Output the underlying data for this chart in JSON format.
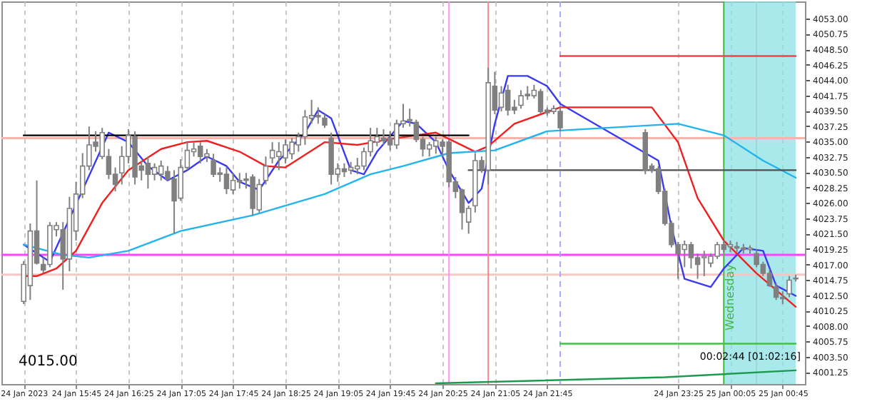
{
  "chart_data": {
    "type": "candlestick",
    "xlim": [
      "2023-01-24T14:48",
      "2023-01-25T01:02"
    ],
    "ylim": [
      3999.5,
      4055.5
    ],
    "xticks": [
      {
        "value": "2023-01-24T15:05",
        "label": "24 Jan 2023"
      },
      {
        "value": "2023-01-24T15:45",
        "label": "24 Jan 15:45"
      },
      {
        "value": "2023-01-24T16:25",
        "label": "24 Jan 16:25"
      },
      {
        "value": "2023-01-24T17:05",
        "label": "24 Jan 17:05"
      },
      {
        "value": "2023-01-24T17:45",
        "label": "24 Jan 17:45"
      },
      {
        "value": "2023-01-24T18:25",
        "label": "24 Jan 18:25"
      },
      {
        "value": "2023-01-24T19:05",
        "label": "24 Jan 19:05"
      },
      {
        "value": "2023-01-24T19:45",
        "label": "24 Jan 19:45"
      },
      {
        "value": "2023-01-24T20:25",
        "label": "24 Jan 20:25"
      },
      {
        "value": "2023-01-24T21:05",
        "label": "24 Jan 21:05"
      },
      {
        "value": "2023-01-24T21:45",
        "label": "24 Jan 21:45"
      },
      {
        "value": "2023-01-24T23:25",
        "label": "24 Jan 23:25"
      },
      {
        "value": "2023-01-25T00:05",
        "label": "25 Jan 00:05"
      },
      {
        "value": "2023-01-25T00:45",
        "label": "25 Jan 00:45"
      }
    ],
    "yticks": [
      {
        "value": 4053,
        "label": "4053.00"
      },
      {
        "value": 4050.75,
        "label": "4050.75"
      },
      {
        "value": 4048.5,
        "label": "4048.50"
      },
      {
        "value": 4046.25,
        "label": "4046.25"
      },
      {
        "value": 4044,
        "label": "4044.00"
      },
      {
        "value": 4041.75,
        "label": "4041.75"
      },
      {
        "value": 4039.5,
        "label": "4039.50"
      },
      {
        "value": 4037.25,
        "label": "4037.25"
      },
      {
        "value": 4035,
        "label": "4035.00"
      },
      {
        "value": 4032.75,
        "label": "4032.75"
      },
      {
        "value": 4030.5,
        "label": "4030.50"
      },
      {
        "value": 4028.25,
        "label": "4028.25"
      },
      {
        "value": 4026,
        "label": "4026.00"
      },
      {
        "value": 4023.75,
        "label": "4023.75"
      },
      {
        "value": 4021.5,
        "label": "4021.50"
      },
      {
        "value": 4019.25,
        "label": "4019.25"
      },
      {
        "value": 4017,
        "label": "4017.00"
      },
      {
        "value": 4014.75,
        "label": "4014.75"
      },
      {
        "value": 4012.5,
        "label": "4012.50"
      },
      {
        "value": 4010.25,
        "label": "4010.25"
      },
      {
        "value": 4008,
        "label": "4008.00"
      },
      {
        "value": 4005.75,
        "label": "4005.75"
      },
      {
        "value": 4003.5,
        "label": "4003.50"
      },
      {
        "value": 4001.25,
        "label": "4001.25"
      }
    ],
    "grid": "x",
    "series": [
      {
        "type": "line",
        "color": "#3a3af0",
        "x": [
          "2023-01-24T15:05",
          "2023-01-24T15:25",
          "2023-01-24T16:10",
          "2023-01-24T16:25",
          "2023-01-24T16:40",
          "2023-01-24T16:55",
          "2023-01-24T17:10",
          "2023-01-24T17:25",
          "2023-01-24T17:40",
          "2023-01-24T17:50",
          "2023-01-24T18:05",
          "2023-01-24T18:20",
          "2023-01-24T18:40",
          "2023-01-24T18:50",
          "2023-01-24T19:00",
          "2023-01-24T19:15",
          "2023-01-24T19:25",
          "2023-01-24T19:35",
          "2023-01-24T19:55",
          "2023-01-24T20:05",
          "2023-01-24T20:20",
          "2023-01-24T20:30",
          "2023-01-24T20:45",
          "2023-01-24T20:55",
          "2023-01-24T21:05",
          "2023-01-24T21:15",
          "2023-01-24T21:30",
          "2023-01-24T21:45",
          "2023-01-24T21:55",
          "2023-01-24T23:10",
          "2023-01-24T23:20",
          "2023-01-24T23:30",
          "2023-01-24T23:50",
          "2023-01-25T00:00",
          "2023-01-25T00:15",
          "2023-01-25T00:30",
          "2023-01-25T00:40",
          "2023-01-25T00:55"
        ],
        "values": [
          4019.9,
          4017.4,
          4036.3,
          4034.9,
          4031.4,
          4029.3,
          4030.8,
          4032.8,
          4031.4,
          4029.1,
          4027.9,
          4032.2,
          4036.3,
          4039.6,
          4038.4,
          4030.8,
          4030.2,
          4033.5,
          4038,
          4037.6,
          4034.9,
          4030.8,
          4026,
          4028.1,
          4037.6,
          4044.6,
          4044.6,
          4043.1,
          4040.5,
          4032.2,
          4022.5,
          4014.9,
          4013.7,
          4016.4,
          4019.4,
          4019,
          4013.9,
          4012.4
        ]
      },
      {
        "type": "line",
        "color": "#f02020",
        "x": [
          "2023-01-24T15:05",
          "2023-01-24T15:15",
          "2023-01-24T15:30",
          "2023-01-24T15:45",
          "2023-01-24T16:05",
          "2023-01-24T16:25",
          "2023-01-24T16:50",
          "2023-01-24T17:10",
          "2023-01-24T17:25",
          "2023-01-24T17:50",
          "2023-01-24T18:10",
          "2023-01-24T18:25",
          "2023-01-24T18:55",
          "2023-01-24T19:20",
          "2023-01-24T19:50",
          "2023-01-24T20:20",
          "2023-01-24T20:35",
          "2023-01-24T20:50",
          "2023-01-24T21:00",
          "2023-01-24T21:20",
          "2023-01-24T21:55",
          "2023-01-24T23:05",
          "2023-01-24T23:25",
          "2023-01-24T23:40",
          "2023-01-25T00:00",
          "2023-01-25T00:25",
          "2023-01-25T00:55"
        ],
        "values": [
          4015.3,
          4015.3,
          4016.4,
          4019,
          4026,
          4030.8,
          4033.9,
          4034.9,
          4035.1,
          4033.5,
          4031.4,
          4031.2,
          4034.9,
          4034.5,
          4035.5,
          4036.3,
          4034.9,
          4033.5,
          4034.3,
          4037.6,
          4040,
          4040,
          4034.9,
          4026.7,
          4020.5,
          4015.7,
          4010.8
        ]
      },
      {
        "type": "line",
        "color": "#22b4ee",
        "x": [
          "2023-01-24T15:05",
          "2023-01-24T15:35",
          "2023-01-24T15:55",
          "2023-01-24T16:25",
          "2023-01-24T17:05",
          "2023-01-24T18:00",
          "2023-01-24T18:55",
          "2023-01-24T19:30",
          "2023-01-24T19:55",
          "2023-01-24T20:30",
          "2023-01-24T21:05",
          "2023-01-24T21:45",
          "2023-01-24T23:25",
          "2023-01-25T00:00",
          "2023-01-25T00:30",
          "2023-01-25T00:55"
        ],
        "values": [
          4019.9,
          4018.4,
          4018,
          4019,
          4021.9,
          4024.2,
          4027.3,
          4030.2,
          4031.4,
          4033.3,
          4033.7,
          4036.5,
          4037.6,
          4035.9,
          4032.2,
          4029.7
        ]
      },
      {
        "type": "line",
        "color": "#1e9a50",
        "x": [
          "2023-01-24T20:20",
          "2023-01-24T23:15",
          "2023-01-25T00:55"
        ],
        "values": [
          3999.6,
          4000.5,
          4001.5
        ]
      },
      {
        "type": "line",
        "color": "#000000",
        "x": [
          "2023-01-24T15:05",
          "2023-01-24T20:45"
        ],
        "values": [
          4035.9,
          4035.9
        ]
      },
      {
        "type": "line",
        "color": "#505050",
        "x": [
          "2023-01-24T20:45",
          "2023-01-25T00:55"
        ],
        "values": [
          4030.8,
          4030.8
        ]
      },
      {
        "type": "line",
        "color": "#e84848",
        "x": [
          "2023-01-24T21:55",
          "2023-01-25T00:55"
        ],
        "values": [
          4047.5,
          4047.5
        ]
      },
      {
        "type": "line",
        "color": "#48c048",
        "x": [
          "2023-01-24T21:55",
          "2023-01-25T00:55"
        ],
        "values": [
          4005.4,
          4005.4
        ]
      },
      {
        "color": "#808080",
        "x": [
          "2023-01-24T15:05",
          "2023-01-24T15:10",
          "2023-01-24T15:15",
          "2023-01-24T15:20",
          "2023-01-24T15:25",
          "2023-01-24T15:30",
          "2023-01-24T15:35",
          "2023-01-24T15:40",
          "2023-01-24T15:45",
          "2023-01-24T15:50",
          "2023-01-24T15:55",
          "2023-01-24T16:00",
          "2023-01-24T16:05",
          "2023-01-24T16:10",
          "2023-01-24T16:15",
          "2023-01-24T16:20",
          "2023-01-24T16:25",
          "2023-01-24T16:30",
          "2023-01-24T16:35",
          "2023-01-24T16:40",
          "2023-01-24T16:45",
          "2023-01-24T16:50",
          "2023-01-24T16:55",
          "2023-01-24T17:00",
          "2023-01-24T17:05",
          "2023-01-24T17:10",
          "2023-01-24T17:15",
          "2023-01-24T17:20",
          "2023-01-24T17:25",
          "2023-01-24T17:30",
          "2023-01-24T17:35",
          "2023-01-24T17:40",
          "2023-01-24T17:45",
          "2023-01-24T17:50",
          "2023-01-24T17:55",
          "2023-01-24T18:00",
          "2023-01-24T18:05",
          "2023-01-24T18:10",
          "2023-01-24T18:15",
          "2023-01-24T18:20",
          "2023-01-24T18:25",
          "2023-01-24T18:30",
          "2023-01-24T18:35",
          "2023-01-24T18:40",
          "2023-01-24T18:45",
          "2023-01-24T18:50",
          "2023-01-24T18:55",
          "2023-01-24T19:00",
          "2023-01-24T19:05",
          "2023-01-24T19:10",
          "2023-01-24T19:15",
          "2023-01-24T19:20",
          "2023-01-24T19:25",
          "2023-01-24T19:30",
          "2023-01-24T19:35",
          "2023-01-24T19:40",
          "2023-01-24T19:45",
          "2023-01-24T19:50",
          "2023-01-24T19:55",
          "2023-01-24T20:00",
          "2023-01-24T20:05",
          "2023-01-24T20:10",
          "2023-01-24T20:15",
          "2023-01-24T20:20",
          "2023-01-24T20:25",
          "2023-01-24T20:30",
          "2023-01-24T20:35",
          "2023-01-24T20:40",
          "2023-01-24T20:45",
          "2023-01-24T20:50",
          "2023-01-24T20:55",
          "2023-01-24T21:00",
          "2023-01-24T21:05",
          "2023-01-24T21:10",
          "2023-01-24T21:15",
          "2023-01-24T21:20",
          "2023-01-24T21:25",
          "2023-01-24T21:30",
          "2023-01-24T21:35",
          "2023-01-24T21:40",
          "2023-01-24T21:45",
          "2023-01-24T21:50",
          "2023-01-24T21:55",
          "2023-01-24T23:00",
          "2023-01-24T23:05",
          "2023-01-24T23:10",
          "2023-01-24T23:15",
          "2023-01-24T23:20",
          "2023-01-24T23:25",
          "2023-01-24T23:30",
          "2023-01-24T23:35",
          "2023-01-24T23:40",
          "2023-01-24T23:45",
          "2023-01-24T23:50",
          "2023-01-24T23:55",
          "2023-01-25T00:00",
          "2023-01-25T00:05",
          "2023-01-25T00:10",
          "2023-01-25T00:15",
          "2023-01-25T00:20",
          "2023-01-25T00:25",
          "2023-01-25T00:30",
          "2023-01-25T00:35",
          "2023-01-25T00:40",
          "2023-01-25T00:45",
          "2023-01-25T00:50",
          "2023-01-25T00:55"
        ],
        "ohlc": [
          [
            4011.6,
            4017.5,
            4011.2,
            4017.0
          ],
          [
            4013.9,
            4023.0,
            4011.8,
            4021.9
          ],
          [
            4021.9,
            4029.3,
            4017.0,
            4017.2
          ],
          [
            4017.0,
            4018.0,
            4015.8,
            4016.2
          ],
          [
            4017.0,
            4023.2,
            4016.6,
            4022.7
          ],
          [
            4022.1,
            4023.2,
            4021.1,
            4022.7
          ],
          [
            4022.1,
            4023.2,
            4013.3,
            4017.8
          ],
          [
            4017.8,
            4026.9,
            4016.0,
            4025.2
          ],
          [
            4021.9,
            4029.1,
            4020.5,
            4027.3
          ],
          [
            4027.3,
            4033.3,
            4026.7,
            4031.4
          ],
          [
            4031.4,
            4037.2,
            4030.8,
            4034.5
          ],
          [
            4034.9,
            4036.5,
            4033.5,
            4034.3
          ],
          [
            4032.8,
            4037.0,
            4032.4,
            4036.3
          ],
          [
            4032.8,
            4033.9,
            4029.5,
            4030.2
          ],
          [
            4030.2,
            4031.2,
            4027.7,
            4028.7
          ],
          [
            4030.4,
            4034.3,
            4028.7,
            4032.8
          ],
          [
            4032.8,
            4036.8,
            4031.8,
            4035.9
          ],
          [
            4035.7,
            4036.5,
            4028.7,
            4029.8
          ],
          [
            4031.4,
            4032.2,
            4029.3,
            4030.8
          ],
          [
            4031.8,
            4032.8,
            4028.1,
            4030.2
          ],
          [
            4030.2,
            4031.8,
            4029.3,
            4031.2
          ],
          [
            4030.2,
            4032.2,
            4029.3,
            4031.4
          ],
          [
            4030.6,
            4031.4,
            4029.3,
            4029.5
          ],
          [
            4029.5,
            4030.8,
            4021.5,
            4026.3
          ],
          [
            4026.7,
            4032.4,
            4026.3,
            4031.2
          ],
          [
            4031.2,
            4034.9,
            4030.8,
            4033.7
          ],
          [
            4033.5,
            4034.9,
            4032.8,
            4033.9
          ],
          [
            4034.3,
            4034.9,
            4031.8,
            4032.8
          ],
          [
            4032.8,
            4033.9,
            4032.0,
            4033.2
          ],
          [
            4032.2,
            4033.2,
            4029.8,
            4030.2
          ],
          [
            4030.4,
            4031.2,
            4029.1,
            4030.2
          ],
          [
            4030.2,
            4031.2,
            4027.3,
            4028.1
          ],
          [
            4027.9,
            4030.4,
            4027.3,
            4029.3
          ],
          [
            4029.3,
            4030.4,
            4028.1,
            4029.1
          ],
          [
            4029.5,
            4030.4,
            4028.1,
            4029.3
          ],
          [
            4029.8,
            4030.2,
            4024.2,
            4025.2
          ],
          [
            4025.0,
            4029.5,
            4024.6,
            4028.7
          ],
          [
            4029.3,
            4032.8,
            4028.7,
            4031.4
          ],
          [
            4032.6,
            4034.9,
            4031.8,
            4033.7
          ],
          [
            4032.8,
            4034.9,
            4030.8,
            4033.5
          ],
          [
            4032.6,
            4035.3,
            4031.8,
            4034.5
          ],
          [
            4033.2,
            4035.5,
            4032.4,
            4034.9
          ],
          [
            4034.5,
            4036.3,
            4033.5,
            4035.7
          ],
          [
            4035.7,
            4039.6,
            4034.5,
            4038.6
          ],
          [
            4038.4,
            4041.1,
            4037.6,
            4038.8
          ],
          [
            4038.8,
            4040.0,
            4037.6,
            4038.6
          ],
          [
            4038.4,
            4039.0,
            4037.0,
            4037.4
          ],
          [
            4035.5,
            4036.3,
            4028.7,
            4030.2
          ],
          [
            4030.2,
            4031.8,
            4029.1,
            4031.0
          ],
          [
            4031.0,
            4031.8,
            4029.8,
            4030.6
          ],
          [
            4030.8,
            4032.0,
            4030.2,
            4031.2
          ],
          [
            4031.0,
            4032.6,
            4030.2,
            4031.4
          ],
          [
            4031.4,
            4034.1,
            4030.8,
            4033.5
          ],
          [
            4033.5,
            4037.0,
            4032.8,
            4035.1
          ],
          [
            4034.9,
            4037.0,
            4034.3,
            4035.7
          ],
          [
            4035.5,
            4036.8,
            4034.5,
            4035.1
          ],
          [
            4035.5,
            4036.5,
            4033.7,
            4034.5
          ],
          [
            4034.5,
            4038.2,
            4033.9,
            4037.6
          ],
          [
            4037.6,
            4040.5,
            4037.0,
            4038.0
          ],
          [
            4038.0,
            4039.8,
            4037.2,
            4038.2
          ],
          [
            4037.8,
            4038.2,
            4034.9,
            4035.3
          ],
          [
            4035.3,
            4035.7,
            4032.8,
            4033.9
          ],
          [
            4033.9,
            4034.9,
            4032.8,
            4034.5
          ],
          [
            4034.3,
            4035.7,
            4033.2,
            4035.1
          ],
          [
            4034.9,
            4035.3,
            4032.8,
            4034.3
          ],
          [
            4034.9,
            4035.3,
            4028.3,
            4029.1
          ],
          [
            4029.1,
            4029.8,
            4026.7,
            4027.7
          ],
          [
            4027.9,
            4028.1,
            4022.1,
            4024.6
          ],
          [
            4023.2,
            4025.6,
            4021.5,
            4025.2
          ],
          [
            4025.6,
            4033.3,
            4024.6,
            4032.2
          ],
          [
            4032.2,
            4032.8,
            4030.4,
            4031.0
          ],
          [
            4030.8,
            4045.8,
            4028.7,
            4043.6
          ],
          [
            4043.1,
            4045.2,
            4039.0,
            4039.6
          ],
          [
            4040.0,
            4043.1,
            4039.4,
            4042.1
          ],
          [
            4042.5,
            4043.3,
            4038.8,
            4039.6
          ],
          [
            4040.0,
            4041.1,
            4039.0,
            4039.6
          ],
          [
            4040.3,
            4042.5,
            4039.8,
            4041.7
          ],
          [
            4041.9,
            4043.1,
            4041.1,
            4041.7
          ],
          [
            4041.7,
            4043.3,
            4041.3,
            4042.5
          ],
          [
            4042.3,
            4042.7,
            4039.0,
            4039.4
          ],
          [
            4039.6,
            4040.0,
            4038.8,
            4039.2
          ],
          [
            4039.4,
            4040.3,
            4039.0,
            4039.8
          ],
          [
            4039.4,
            4040.0,
            4036.5,
            4037.0
          ],
          [
            4036.3,
            4036.8,
            4030.2,
            4030.8
          ],
          [
            4031.4,
            4031.8,
            4030.4,
            4030.8
          ],
          [
            4031.0,
            4031.4,
            4027.3,
            4027.7
          ],
          [
            4027.7,
            4028.1,
            4022.7,
            4023.0
          ],
          [
            4023.0,
            4023.4,
            4019.5,
            4019.9
          ],
          [
            4019.9,
            4020.3,
            4014.9,
            4018.6
          ],
          [
            4019.2,
            4020.5,
            4016.6,
            4019.9
          ],
          [
            4019.9,
            4020.3,
            4016.4,
            4018.0
          ],
          [
            4018.0,
            4018.6,
            4014.9,
            4017.0
          ],
          [
            4018.0,
            4019.0,
            4015.3,
            4018.2
          ],
          [
            4017.2,
            4018.6,
            4016.6,
            4018.2
          ],
          [
            4018.2,
            4020.3,
            4017.8,
            4019.9
          ],
          [
            4019.9,
            4020.5,
            4018.8,
            4019.2
          ],
          [
            4019.6,
            4020.5,
            4018.8,
            4019.9
          ],
          [
            4019.6,
            4020.3,
            4018.8,
            4019.4
          ],
          [
            4019.4,
            4020.0,
            4018.6,
            4019.2
          ],
          [
            4019.2,
            4019.8,
            4018.6,
            4019.4
          ],
          [
            4018.6,
            4019.2,
            4016.6,
            4017.0
          ],
          [
            4017.0,
            4017.4,
            4015.3,
            4015.7
          ],
          [
            4015.7,
            4016.2,
            4013.7,
            4013.9
          ],
          [
            4013.7,
            4014.3,
            4011.8,
            4012.2
          ],
          [
            4012.2,
            4013.1,
            4011.2,
            4012.0
          ],
          [
            4012.7,
            4015.3,
            4012.2,
            4014.7
          ],
          [
            4014.9,
            4015.5,
            4014.5,
            4015.0
          ]
        ]
      }
    ],
    "ref_lines": [
      {
        "axis": "y",
        "value": 4035.5,
        "color": "#f6b4aa"
      },
      {
        "axis": "y",
        "value": 4018.4,
        "color": "#ff44ff"
      },
      {
        "axis": "y",
        "value": 4015.5,
        "color": "#f8c4c4"
      },
      {
        "axis": "x",
        "value": "2023-01-24T20:30",
        "color": "#ff90ff"
      },
      {
        "axis": "x",
        "value": "2023-01-24T21:00",
        "color": "#f08a8a"
      },
      {
        "axis": "x",
        "value": "2023-01-24T21:55",
        "color": "#a8a8ff",
        "line_style": "dashed"
      },
      {
        "axis": "x",
        "value": "2023-01-25T00:00",
        "color": "#44b844",
        "label": "Wednesday"
      },
      {
        "axis": "x",
        "value": "2023-01-25T00:25",
        "color": "#9fd6d6"
      }
    ],
    "bands": [
      {
        "axis": "x",
        "from": "2023-01-25T00:00",
        "to": "2023-01-25T00:55",
        "color": "#8ee2e4"
      }
    ],
    "annotations": [
      "4015.00",
      "00:02:44 [01:02:16]"
    ]
  }
}
